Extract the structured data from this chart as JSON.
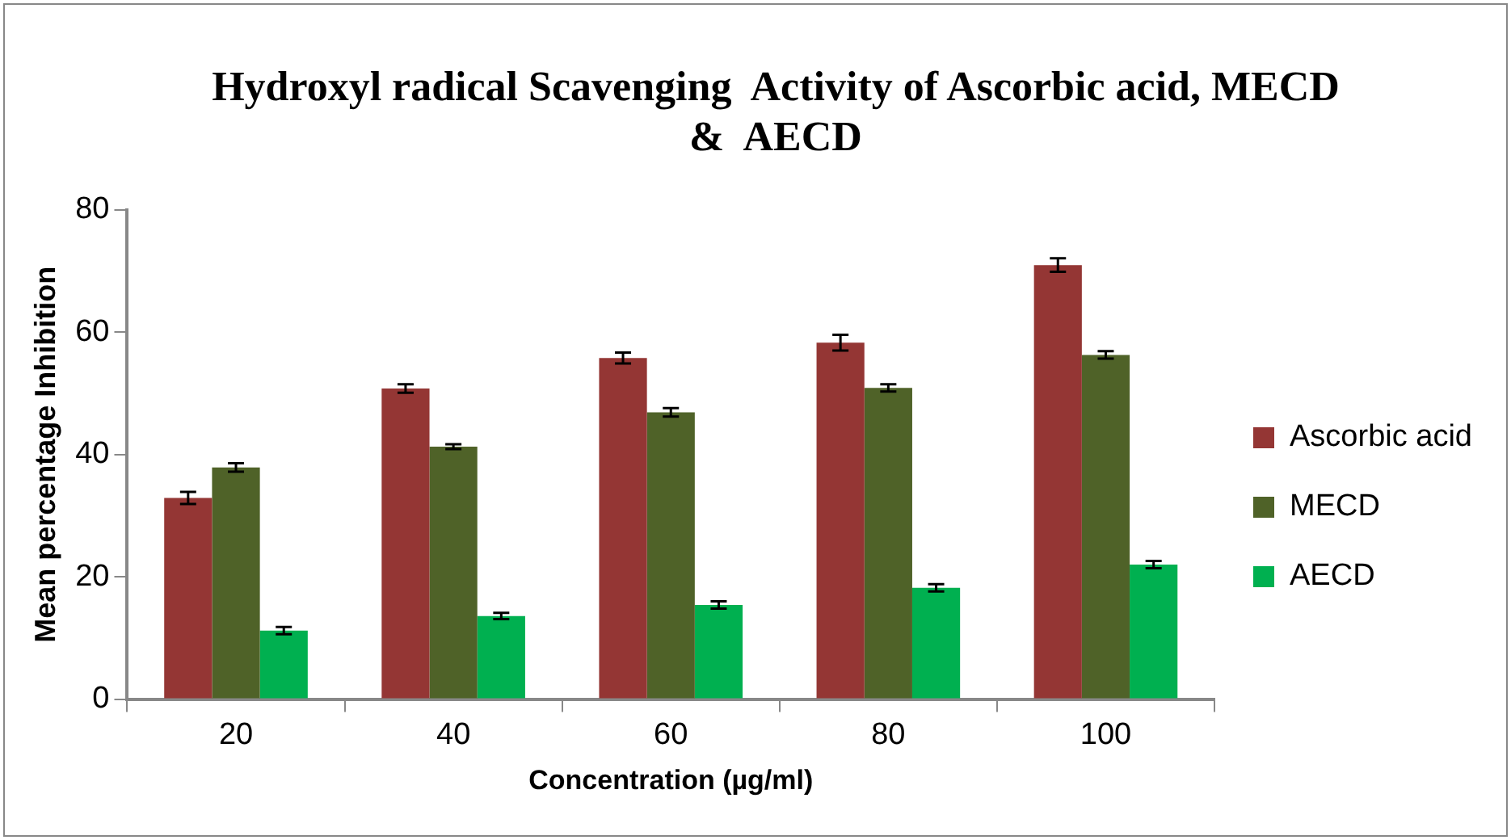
{
  "chart_data": {
    "type": "bar",
    "title": "Hydroxyl radical Scavenging  Activity of Ascorbic acid, MECD &  AECD",
    "xlabel": "Concentration (µg/ml)",
    "ylabel": "Mean percentage Inhibition",
    "categories": [
      "20",
      "40",
      "60",
      "80",
      "100"
    ],
    "series": [
      {
        "name": "Ascorbic acid",
        "color": "#943634",
        "values": [
          32.9,
          50.8,
          55.8,
          58.3,
          71.0
        ],
        "errors": [
          1.0,
          0.7,
          0.9,
          1.3,
          1.1
        ]
      },
      {
        "name": "MECD",
        "color": "#4f6228",
        "values": [
          37.9,
          41.3,
          46.9,
          50.9,
          56.3
        ],
        "errors": [
          0.7,
          0.4,
          0.7,
          0.6,
          0.6
        ]
      },
      {
        "name": "AECD",
        "color": "#00b050",
        "values": [
          11.2,
          13.6,
          15.4,
          18.2,
          22.0
        ],
        "errors": [
          0.6,
          0.5,
          0.6,
          0.6,
          0.6
        ]
      }
    ],
    "ylim": [
      0,
      80
    ],
    "yticks": [
      0,
      20,
      40,
      60,
      80
    ],
    "grid": false,
    "legend": "right"
  }
}
